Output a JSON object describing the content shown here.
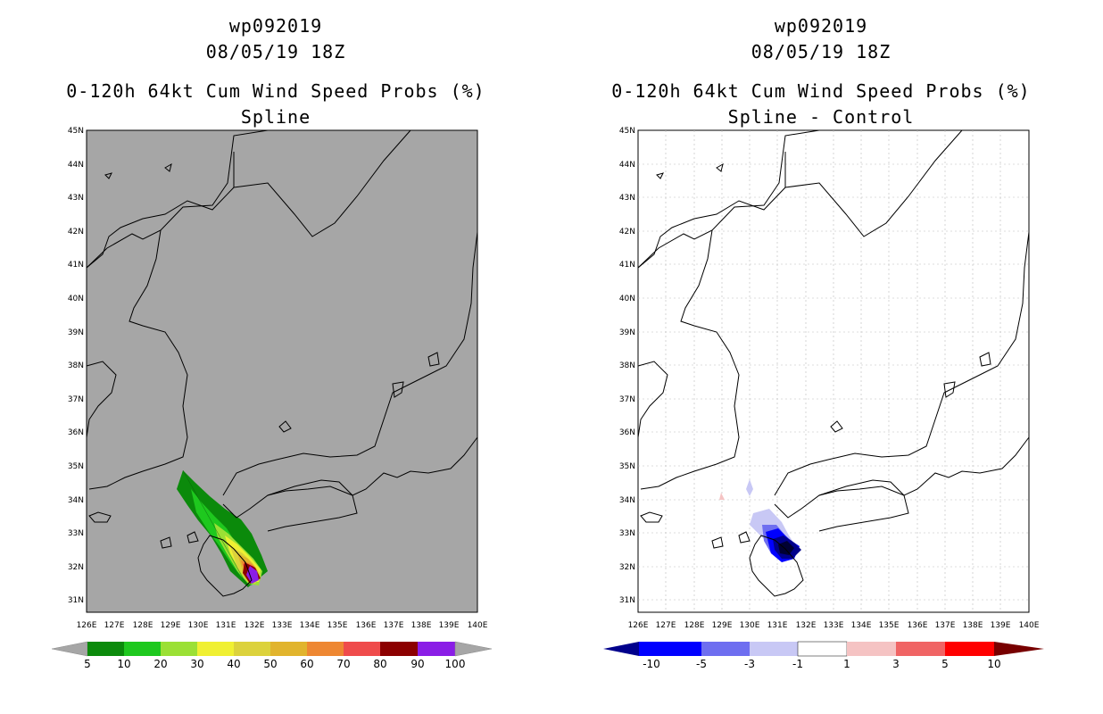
{
  "left_panel": {
    "title_line1": "wp092019",
    "title_line2": "08/05/19 18Z",
    "title_line3": "0-120h 64kt Cum Wind Speed Probs (%)",
    "title_line4": "Spline",
    "colorbar_labels": [
      "5",
      "10",
      "20",
      "30",
      "40",
      "50",
      "60",
      "70",
      "80",
      "90",
      "100"
    ],
    "colorbar_colors": [
      "#0b8a0b",
      "#1ec81e",
      "#9be035",
      "#f0f032",
      "#dcd23c",
      "#e1b42d",
      "#ee8732",
      "#ef4b4b",
      "#8c0000",
      "#8a1ee6"
    ],
    "background_color": "#a6a6a6"
  },
  "right_panel": {
    "title_line1": "wp092019",
    "title_line2": "08/05/19 18Z",
    "title_line3": "0-120h 64kt Cum Wind Speed Probs (%)",
    "title_line4": "Spline - Control",
    "colorbar_labels": [
      "-10",
      "-5",
      "-3",
      "-1",
      "1",
      "3",
      "5",
      "10"
    ],
    "colorbar_colors": [
      "#00008c",
      "#0000ff",
      "#6e6ef0",
      "#c8c8f5",
      "#ffffff",
      "#f5c3c3",
      "#f06464",
      "#ff0000",
      "#780000"
    ],
    "background_color": "#ffffff"
  },
  "axes": {
    "lat_labels": [
      "45N",
      "44N",
      "43N",
      "42N",
      "41N",
      "40N",
      "39N",
      "38N",
      "37N",
      "36N",
      "35N",
      "34N",
      "33N",
      "32N",
      "31N"
    ],
    "lon_labels": [
      "126E",
      "127E",
      "128E",
      "129E",
      "130E",
      "131E",
      "132E",
      "133E",
      "134E",
      "135E",
      "136E",
      "137E",
      "138E",
      "139E",
      "140E"
    ]
  }
}
